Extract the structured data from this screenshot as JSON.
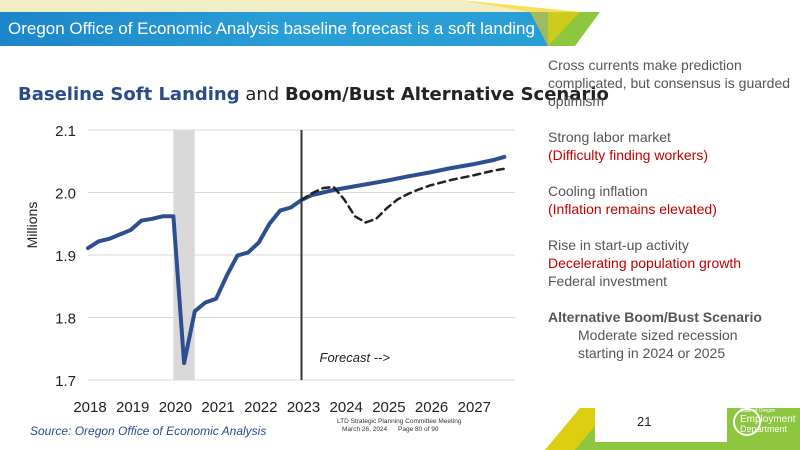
{
  "slide": {
    "title": "Oregon Office of Economic Analysis baseline forecast is a soft landing",
    "heading_blue": "Baseline Soft Landing",
    "heading_and": " and ",
    "heading_black": "Boom/Bust Alternative Scenario",
    "source": "Source: Oregon Office of Economic Analysis",
    "meeting_line1": "LTD Strategic Planning Committee Meeting",
    "meeting_line2": "March 26, 2024",
    "meeting_line3": "Page 80 of 90",
    "page_number": "21",
    "logo_line1": "State of Oregon",
    "logo_line2": "Employment",
    "logo_line3": "Department"
  },
  "notes": {
    "p1": "Cross currents make prediction complicated, but consensus is guarded optimism",
    "p2_line1": "Strong labor market",
    "p2_line2": "(Difficulty finding workers)",
    "p3_line1": "Cooling inflation",
    "p3_line2": "(Inflation remains elevated)",
    "p4_line1": "Rise in start-up activity",
    "p4_line2": "Decelerating population growth",
    "p4_line3": "Federal investment",
    "p5_title": "Alternative Boom/Bust Scenario",
    "p5_line1": "Moderate sized recession",
    "p5_line2": "starting in 2024 or 2025"
  },
  "colors": {
    "baseline": "#2e4f8f",
    "alternative": "#222222",
    "recession_shade": "#d9d9d9",
    "red_text": "#c00000",
    "banner_blue": "#2a9fd6"
  },
  "chart_data": {
    "type": "line",
    "ylabel": "Millions",
    "ylim": [
      1.7,
      2.1
    ],
    "yticks": [
      1.7,
      1.8,
      1.9,
      2.0,
      2.1
    ],
    "ytick_labels": [
      "1.7",
      "1.8",
      "1.9",
      "2.0",
      "2.1"
    ],
    "xlim": [
      2018,
      2028
    ],
    "xticks": [
      2018,
      2019,
      2020,
      2021,
      2022,
      2023,
      2024,
      2025,
      2026,
      2027
    ],
    "xtick_labels": [
      "2018",
      "2019",
      "2020",
      "2021",
      "2022",
      "2023",
      "2024",
      "2025",
      "2026",
      "2027"
    ],
    "recession_band": [
      2020.0,
      2020.5
    ],
    "forecast_start": 2023.0,
    "forecast_label": "Forecast -->",
    "grid": "horizontal",
    "series": [
      {
        "style": "solid",
        "x": [
          2018.0,
          2018.25,
          2018.5,
          2018.75,
          2019.0,
          2019.25,
          2019.5,
          2019.75,
          2020.0,
          2020.25,
          2020.5,
          2020.75,
          2021.0,
          2021.25,
          2021.5,
          2021.75,
          2022.0,
          2022.25,
          2022.5,
          2022.75,
          2023.0,
          2023.25,
          2023.5,
          2023.75,
          2024.0,
          2024.5,
          2025.0,
          2025.5,
          2026.0,
          2026.5,
          2027.0,
          2027.5,
          2027.75
        ],
        "y": [
          1.911,
          1.922,
          1.926,
          1.933,
          1.94,
          1.955,
          1.958,
          1.962,
          1.962,
          1.727,
          1.81,
          1.824,
          1.83,
          1.867,
          1.899,
          1.904,
          1.92,
          1.95,
          1.971,
          1.976,
          1.988,
          1.996,
          2.0,
          2.004,
          2.007,
          2.013,
          2.019,
          2.026,
          2.032,
          2.039,
          2.045,
          2.052,
          2.057
        ]
      },
      {
        "style": "dashed",
        "x": [
          2023.0,
          2023.25,
          2023.5,
          2023.75,
          2024.0,
          2024.25,
          2024.5,
          2024.75,
          2025.0,
          2025.25,
          2025.5,
          2025.75,
          2026.0,
          2026.5,
          2027.0,
          2027.5,
          2027.75
        ],
        "y": [
          1.988,
          1.999,
          2.007,
          2.009,
          1.989,
          1.962,
          1.952,
          1.958,
          1.975,
          1.989,
          1.998,
          2.005,
          2.011,
          2.02,
          2.027,
          2.035,
          2.038
        ]
      }
    ]
  }
}
